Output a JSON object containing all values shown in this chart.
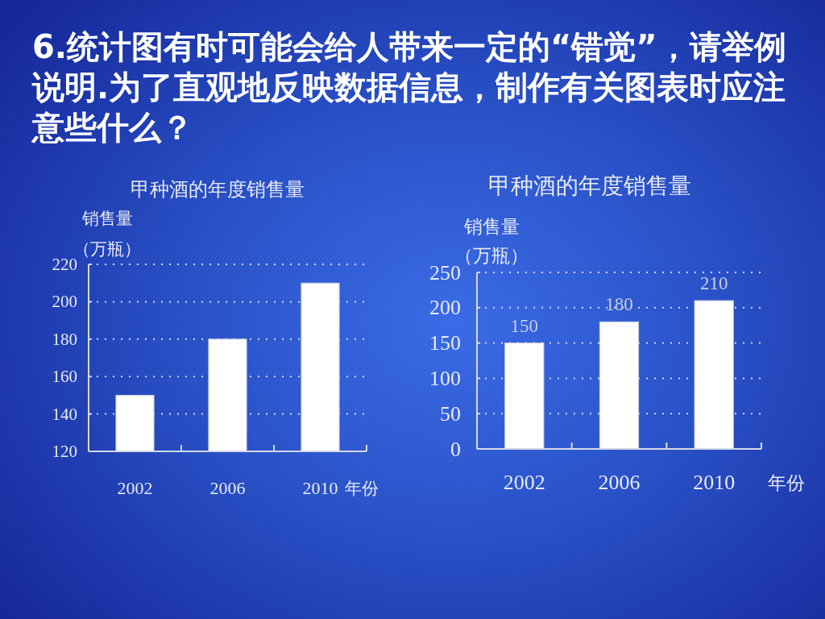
{
  "chart_data": [
    {
      "type": "other",
      "title": "6.统计图有时可能会给人带来一定的“错觉”，请举例说明.为了直观地反映数据信息，制作有关图表时应注意些什么？"
    },
    {
      "type": "bar",
      "title": "甲种酒的年度销售量",
      "ylabel": "销售量（万瓶）",
      "xlabel": "年份",
      "categories": [
        "2002",
        "2006",
        "2010"
      ],
      "values": [
        150,
        180,
        210
      ],
      "color": "#ffffff",
      "ylim": [
        120,
        220
      ],
      "yticks": [
        120,
        140,
        160,
        180,
        200,
        220
      ],
      "grid": "y"
    },
    {
      "type": "bar",
      "title": "甲种酒的年度销售量",
      "ylabel": "销售量（万瓶）",
      "xlabel": "年份",
      "categories": [
        "2002",
        "2006",
        "2010"
      ],
      "values": [
        150,
        180,
        210
      ],
      "color": "#ffffff",
      "ylim": [
        0,
        250
      ],
      "yticks": [
        0,
        50,
        100,
        150,
        200,
        250
      ],
      "grid": "y",
      "data_labels": true
    }
  ]
}
